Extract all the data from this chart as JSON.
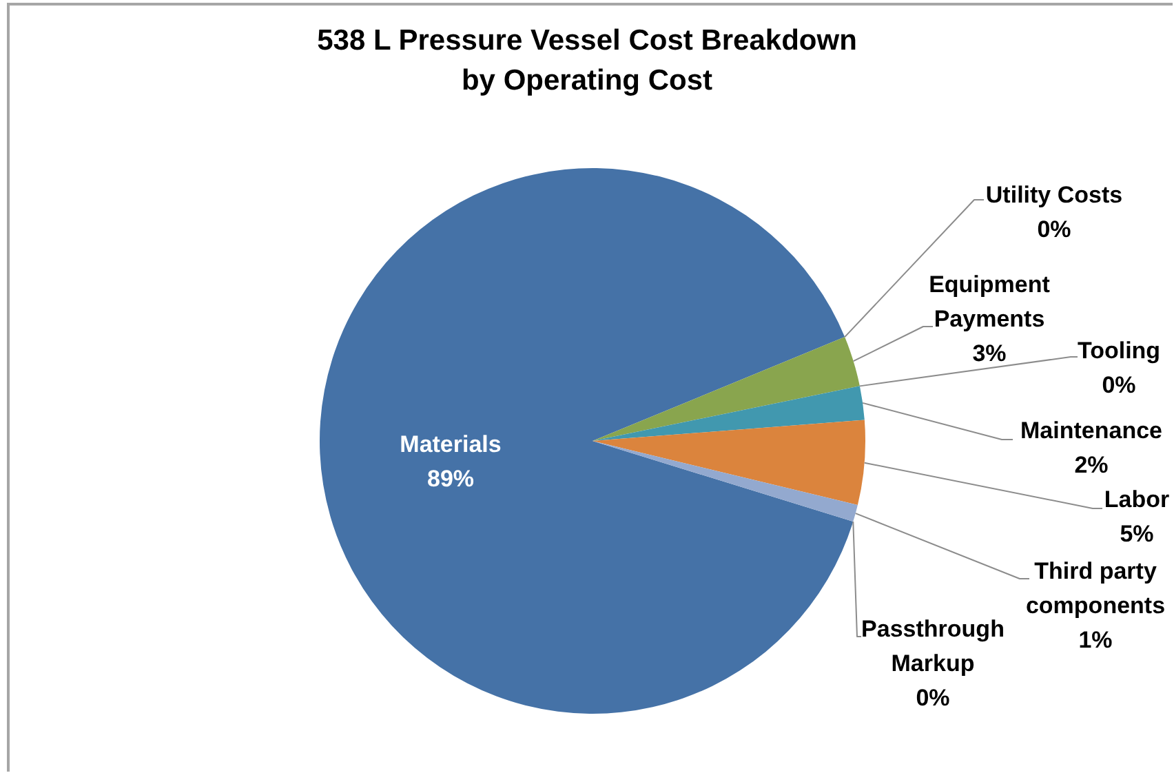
{
  "chart_data": {
    "type": "pie",
    "title": "538 L Pressure Vessel Cost Breakdown by Operating Cost",
    "categories": [
      "Materials",
      "Utility Costs",
      "Equipment Payments",
      "Tooling",
      "Maintenance",
      "Labor",
      "Third party components",
      "Passthrough Markup"
    ],
    "values": [
      89,
      0,
      3,
      0,
      2,
      5,
      1,
      0
    ],
    "value_labels": [
      "89%",
      "0%",
      "3%",
      "0%",
      "2%",
      "5%",
      "1%",
      "0%"
    ],
    "colors": [
      "#4572a7",
      "#aa4643",
      "#89a54e",
      "#71588f",
      "#4198af",
      "#db843d",
      "#93a9cf",
      "#d19392"
    ]
  }
}
